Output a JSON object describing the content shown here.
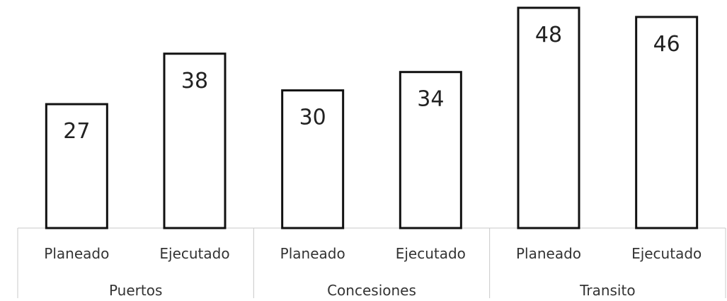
{
  "chart_data": {
    "type": "bar",
    "groups": [
      {
        "name": "Puertos",
        "categories": [
          "Planeado",
          "Ejecutado"
        ],
        "values": [
          27,
          38
        ]
      },
      {
        "name": "Concesiones",
        "categories": [
          "Planeado",
          "Ejecutado"
        ],
        "values": [
          30,
          34
        ]
      },
      {
        "name": "Transito",
        "categories": [
          "Planeado",
          "Ejecutado"
        ],
        "values": [
          48,
          46
        ]
      }
    ],
    "title": "",
    "xlabel": "",
    "ylabel": "",
    "ylim": [
      0,
      48
    ],
    "grid": false,
    "legend": "none",
    "colors": {
      "bar_fill": "#ffffff",
      "bar_stroke": "#111111",
      "axis": "#c8c8c8",
      "text": "#222222"
    }
  }
}
